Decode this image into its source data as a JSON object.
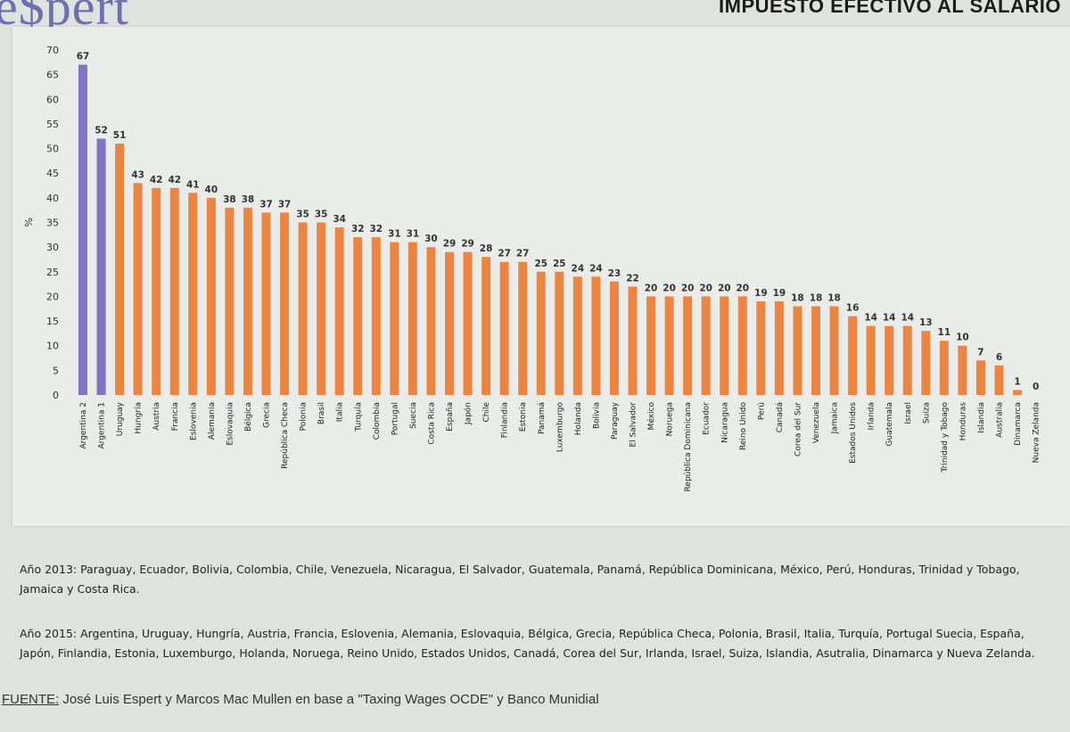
{
  "header": {
    "logo": "e$pert",
    "title": "IMPUESTO EFECTIVO AL SALARIO"
  },
  "colors": {
    "highlight": "#8373c7",
    "bar": "#ec8542",
    "axis_text": "#333333"
  },
  "chart_data": {
    "type": "bar",
    "title": "",
    "xlabel": "",
    "ylabel": "%",
    "ylim": [
      0,
      70
    ],
    "yticks": [
      0,
      5,
      10,
      15,
      20,
      25,
      30,
      35,
      40,
      45,
      50,
      55,
      60,
      65,
      70
    ],
    "grid": false,
    "categories": [
      "Argentina 2",
      "Argentina 1",
      "Uruguay",
      "Hungría",
      "Austria",
      "Francia",
      "Eslovenia",
      "Alemania",
      "Eslovaquia",
      "Bélgica",
      "Grecia",
      "República Checa",
      "Polonia",
      "Brasil",
      "Italia",
      "Turquía",
      "Colombia",
      "Portugal",
      "Suecia",
      "Costa Rica",
      "España",
      "Japón",
      "Chile",
      "Finlandia",
      "Estonia",
      "Panamá",
      "Luxemburgo",
      "Holanda",
      "Bolivia",
      "Paraguay",
      "El Salvador",
      "México",
      "Noruega",
      "República Dominicana",
      "Ecuador",
      "Nicaragua",
      "Reino Unido",
      "Perú",
      "Canadá",
      "Corea del Sur",
      "Venezuela",
      "Jamaica",
      "Estados Unidos",
      "Irlanda",
      "Guatemala",
      "Israel",
      "Suiza",
      "Trinidad y Tobago",
      "Honduras",
      "Islandia",
      "Australia",
      "Dinamarca",
      "Nueva Zelanda"
    ],
    "values": [
      67,
      52,
      51,
      43,
      42,
      42,
      41,
      40,
      38,
      38,
      37,
      37,
      35,
      35,
      34,
      32,
      32,
      31,
      31,
      30,
      29,
      29,
      28,
      27,
      27,
      25,
      25,
      24,
      24,
      23,
      22,
      20,
      20,
      20,
      20,
      20,
      20,
      19,
      19,
      18,
      18,
      18,
      16,
      14,
      14,
      14,
      13,
      11,
      10,
      7,
      6,
      1,
      0
    ],
    "highlighted": [
      "Argentina 2",
      "Argentina 1"
    ]
  },
  "notes": {
    "year_2013": "Año 2013: Paraguay, Ecuador, Bolivia, Colombia, Chile, Venezuela, Nicaragua, El Salvador, Guatemala, Panamá, República Dominicana, México, Perú, Honduras, Trinidad y Tobago, Jamaica y Costa Rica.",
    "year_2015": "Año 2015: Argentina, Uruguay, Hungría, Austria, Francia, Eslovenia, Alemania, Eslovaquia, Bélgica, Grecia, República Checa, Polonia, Brasil, Italia, Turquía, Portugal Suecia, España, Japón, Finlandia, Estonia, Luxemburgo, Holanda, Noruega, Reino Unido, Estados Unidos, Canadá, Corea del Sur, Irlanda, Israel, Suiza, Islandia, Asutralia, Dinamarca y Nueva Zelanda."
  },
  "source": {
    "label": "FUENTE:",
    "text": " José Luis Espert y Marcos Mac Mullen en base a \"Taxing Wages OCDE\" y Banco Munidial"
  }
}
